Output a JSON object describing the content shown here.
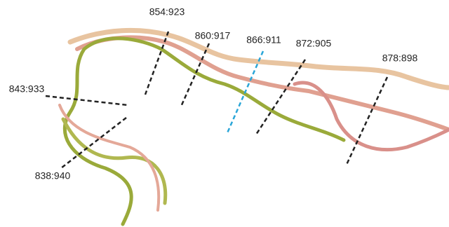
{
  "labels": [
    "854:923",
    "860:917",
    "866:911",
    "872:905",
    "878:898",
    "843:933",
    "838:940"
  ]
}
